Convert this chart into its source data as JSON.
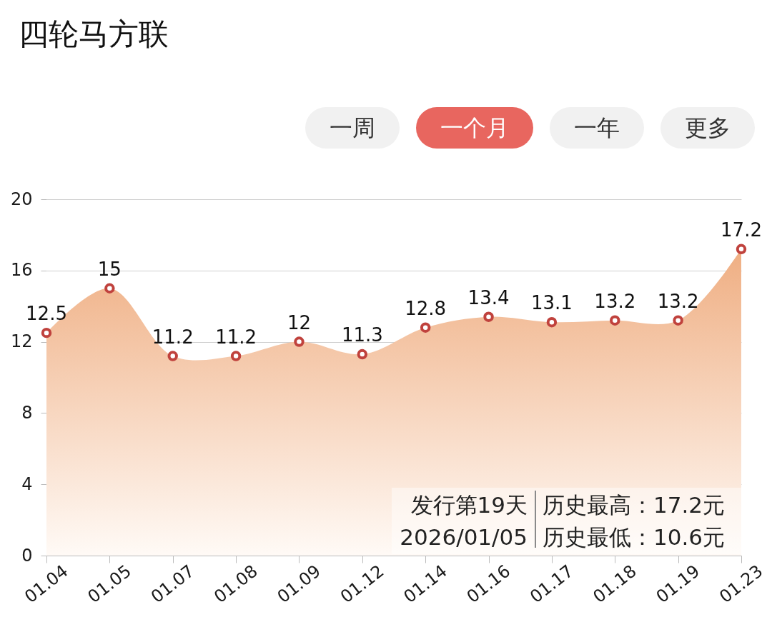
{
  "chart_data": {
    "type": "area",
    "title": "四轮马方联",
    "categories": [
      "01.04",
      "01.05",
      "01.07",
      "01.08",
      "01.09",
      "01.12",
      "01.14",
      "01.16",
      "01.17",
      "01.18",
      "01.19",
      "01.23"
    ],
    "series": [
      {
        "color": "#efae82",
        "values": [
          12.5,
          15,
          11.2,
          11.2,
          12,
          11.3,
          12.8,
          13.4,
          13.1,
          13.2,
          13.2,
          17.2
        ]
      }
    ],
    "ylim": [
      0,
      20
    ],
    "yticks": [
      0,
      4,
      8,
      12,
      16,
      20
    ],
    "grid": "y",
    "marker": "circle",
    "data_labels": true,
    "annotations": [
      "一周",
      "一个月",
      "一年",
      "更多",
      "发行第19天",
      "2026/01/05",
      "历史最高：17.2元",
      "历史最低：10.6元"
    ]
  }
}
